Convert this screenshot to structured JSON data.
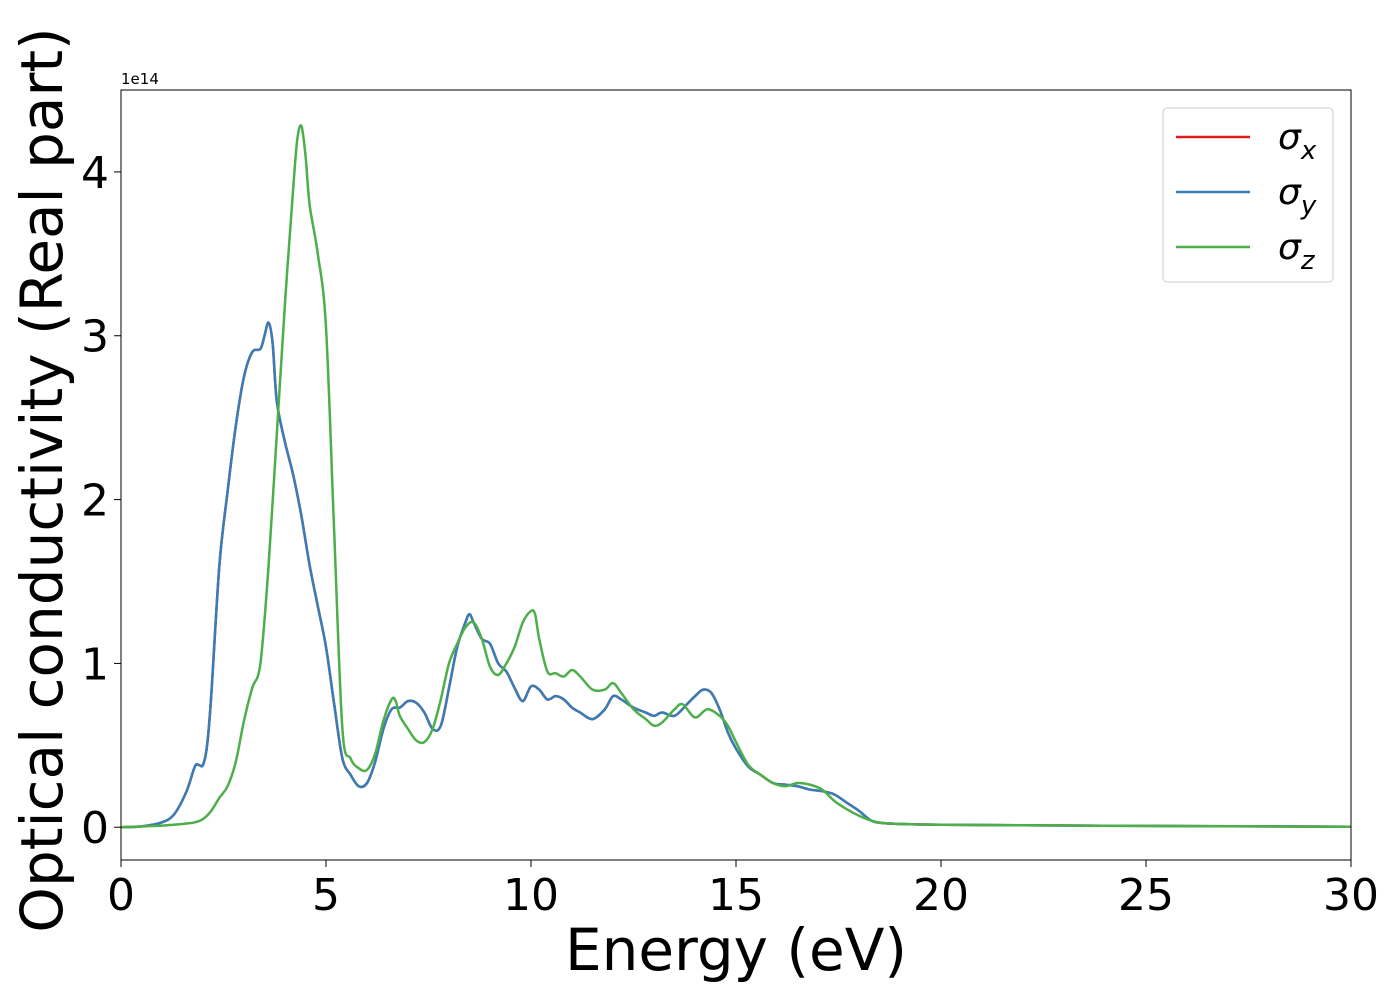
{
  "chart_data": {
    "type": "line",
    "xlabel": "Energy (eV)",
    "ylabel": "Optical conductivity (Real part)",
    "y_offset_text": "1e14",
    "y_multiplier": 100000000000000.0,
    "xlim": [
      0,
      30
    ],
    "ylim": [
      -0.2,
      4.5
    ],
    "x_ticks": [
      0,
      5,
      10,
      15,
      20,
      25,
      30
    ],
    "x_tick_labels": [
      "0",
      "5",
      "10",
      "15",
      "20",
      "25",
      "30"
    ],
    "y_ticks": [
      0,
      1,
      2,
      3,
      4
    ],
    "y_tick_labels": [
      "0",
      "1",
      "2",
      "3",
      "4"
    ],
    "grid": false,
    "legend_position": "top-right",
    "series": [
      {
        "name": "σx",
        "legend_base": "σ",
        "legend_sub": "x",
        "color": "#e41a1c",
        "x": [
          0,
          0.5,
          1.0,
          1.3,
          1.6,
          1.8,
          1.9,
          2.0,
          2.1,
          2.2,
          2.4,
          2.6,
          2.8,
          3.0,
          3.2,
          3.4,
          3.5,
          3.6,
          3.7,
          3.8,
          4.0,
          4.2,
          4.4,
          4.6,
          4.8,
          5.0,
          5.2,
          5.4,
          5.6,
          5.8,
          6.0,
          6.2,
          6.4,
          6.6,
          6.8,
          7.0,
          7.2,
          7.4,
          7.6,
          7.8,
          8.0,
          8.2,
          8.4,
          8.5,
          8.6,
          8.8,
          9.0,
          9.2,
          9.4,
          9.6,
          9.8,
          10.0,
          10.2,
          10.4,
          10.6,
          10.8,
          11.0,
          11.2,
          11.5,
          11.8,
          12.0,
          12.2,
          12.5,
          12.8,
          13.0,
          13.2,
          13.5,
          13.8,
          14.0,
          14.2,
          14.4,
          14.6,
          14.8,
          15.0,
          15.3,
          15.6,
          15.9,
          16.2,
          16.5,
          16.8,
          17.1,
          17.4,
          17.7,
          18.0,
          18.3,
          18.6,
          19.0,
          20.0,
          22.0,
          25.0,
          28.0,
          30.0
        ],
        "values": [
          0,
          0.005,
          0.03,
          0.08,
          0.22,
          0.37,
          0.38,
          0.38,
          0.5,
          0.8,
          1.6,
          2.05,
          2.45,
          2.75,
          2.9,
          2.92,
          3.0,
          3.08,
          2.95,
          2.6,
          2.35,
          2.15,
          1.9,
          1.6,
          1.35,
          1.1,
          0.75,
          0.42,
          0.32,
          0.25,
          0.27,
          0.4,
          0.6,
          0.72,
          0.73,
          0.77,
          0.76,
          0.7,
          0.6,
          0.62,
          0.85,
          1.1,
          1.25,
          1.3,
          1.25,
          1.15,
          1.12,
          1.0,
          0.95,
          0.85,
          0.77,
          0.86,
          0.84,
          0.78,
          0.8,
          0.78,
          0.73,
          0.7,
          0.66,
          0.72,
          0.8,
          0.78,
          0.73,
          0.7,
          0.68,
          0.7,
          0.68,
          0.75,
          0.8,
          0.84,
          0.82,
          0.72,
          0.58,
          0.48,
          0.37,
          0.32,
          0.27,
          0.26,
          0.25,
          0.23,
          0.22,
          0.2,
          0.15,
          0.1,
          0.04,
          0.025,
          0.02,
          0.015,
          0.012,
          0.008,
          0.005,
          0.003
        ]
      },
      {
        "name": "σy",
        "legend_base": "σ",
        "legend_sub": "y",
        "color": "#377eb8",
        "x": [
          0,
          0.5,
          1.0,
          1.3,
          1.6,
          1.8,
          1.9,
          2.0,
          2.1,
          2.2,
          2.4,
          2.6,
          2.8,
          3.0,
          3.2,
          3.4,
          3.5,
          3.6,
          3.7,
          3.8,
          4.0,
          4.2,
          4.4,
          4.6,
          4.8,
          5.0,
          5.2,
          5.4,
          5.6,
          5.8,
          6.0,
          6.2,
          6.4,
          6.6,
          6.8,
          7.0,
          7.2,
          7.4,
          7.6,
          7.8,
          8.0,
          8.2,
          8.4,
          8.5,
          8.6,
          8.8,
          9.0,
          9.2,
          9.4,
          9.6,
          9.8,
          10.0,
          10.2,
          10.4,
          10.6,
          10.8,
          11.0,
          11.2,
          11.5,
          11.8,
          12.0,
          12.2,
          12.5,
          12.8,
          13.0,
          13.2,
          13.5,
          13.8,
          14.0,
          14.2,
          14.4,
          14.6,
          14.8,
          15.0,
          15.3,
          15.6,
          15.9,
          16.2,
          16.5,
          16.8,
          17.1,
          17.4,
          17.7,
          18.0,
          18.3,
          18.6,
          19.0,
          20.0,
          22.0,
          25.0,
          28.0,
          30.0
        ],
        "values": [
          0,
          0.005,
          0.03,
          0.08,
          0.22,
          0.37,
          0.38,
          0.38,
          0.5,
          0.8,
          1.6,
          2.05,
          2.45,
          2.75,
          2.9,
          2.92,
          3.0,
          3.08,
          2.95,
          2.6,
          2.35,
          2.15,
          1.9,
          1.6,
          1.35,
          1.1,
          0.75,
          0.42,
          0.32,
          0.25,
          0.27,
          0.4,
          0.6,
          0.72,
          0.73,
          0.77,
          0.76,
          0.7,
          0.6,
          0.62,
          0.85,
          1.1,
          1.25,
          1.3,
          1.25,
          1.15,
          1.12,
          1.0,
          0.95,
          0.85,
          0.77,
          0.86,
          0.84,
          0.78,
          0.8,
          0.78,
          0.73,
          0.7,
          0.66,
          0.72,
          0.8,
          0.78,
          0.73,
          0.7,
          0.68,
          0.7,
          0.68,
          0.75,
          0.8,
          0.84,
          0.82,
          0.72,
          0.58,
          0.48,
          0.37,
          0.32,
          0.27,
          0.26,
          0.25,
          0.23,
          0.22,
          0.2,
          0.15,
          0.1,
          0.04,
          0.025,
          0.02,
          0.015,
          0.012,
          0.008,
          0.005,
          0.003
        ]
      },
      {
        "name": "σz",
        "legend_base": "σ",
        "legend_sub": "z",
        "color": "#4daf4a",
        "x": [
          0,
          0.5,
          1.0,
          1.5,
          1.8,
          2.0,
          2.2,
          2.4,
          2.6,
          2.8,
          3.0,
          3.2,
          3.4,
          3.6,
          3.8,
          4.0,
          4.2,
          4.3,
          4.4,
          4.5,
          4.6,
          4.8,
          5.0,
          5.2,
          5.4,
          5.6,
          5.8,
          6.0,
          6.2,
          6.4,
          6.6,
          6.7,
          6.8,
          7.0,
          7.2,
          7.4,
          7.6,
          7.8,
          8.0,
          8.2,
          8.4,
          8.6,
          8.8,
          9.0,
          9.2,
          9.4,
          9.6,
          9.8,
          10.0,
          10.1,
          10.2,
          10.4,
          10.6,
          10.8,
          11.0,
          11.2,
          11.5,
          11.8,
          12.0,
          12.2,
          12.5,
          12.8,
          13.0,
          13.2,
          13.5,
          13.7,
          14.0,
          14.3,
          14.6,
          14.8,
          15.0,
          15.3,
          15.6,
          15.9,
          16.2,
          16.5,
          16.8,
          17.1,
          17.4,
          17.7,
          18.0,
          18.3,
          18.6,
          19.0,
          20.0,
          22.0,
          25.0,
          28.0,
          30.0
        ],
        "values": [
          0,
          0.005,
          0.01,
          0.02,
          0.03,
          0.05,
          0.1,
          0.18,
          0.25,
          0.4,
          0.65,
          0.85,
          1.0,
          1.6,
          2.4,
          3.2,
          3.9,
          4.2,
          4.28,
          4.1,
          3.8,
          3.5,
          3.05,
          1.8,
          0.6,
          0.42,
          0.36,
          0.35,
          0.45,
          0.65,
          0.78,
          0.77,
          0.68,
          0.6,
          0.53,
          0.52,
          0.6,
          0.78,
          1.0,
          1.12,
          1.22,
          1.25,
          1.15,
          0.98,
          0.93,
          1.0,
          1.1,
          1.25,
          1.32,
          1.3,
          1.15,
          0.95,
          0.94,
          0.92,
          0.96,
          0.92,
          0.84,
          0.84,
          0.88,
          0.82,
          0.72,
          0.66,
          0.62,
          0.64,
          0.72,
          0.75,
          0.67,
          0.72,
          0.68,
          0.62,
          0.52,
          0.38,
          0.32,
          0.27,
          0.25,
          0.27,
          0.26,
          0.23,
          0.16,
          0.11,
          0.07,
          0.04,
          0.025,
          0.02,
          0.015,
          0.012,
          0.008,
          0.005,
          0.003
        ]
      }
    ]
  }
}
